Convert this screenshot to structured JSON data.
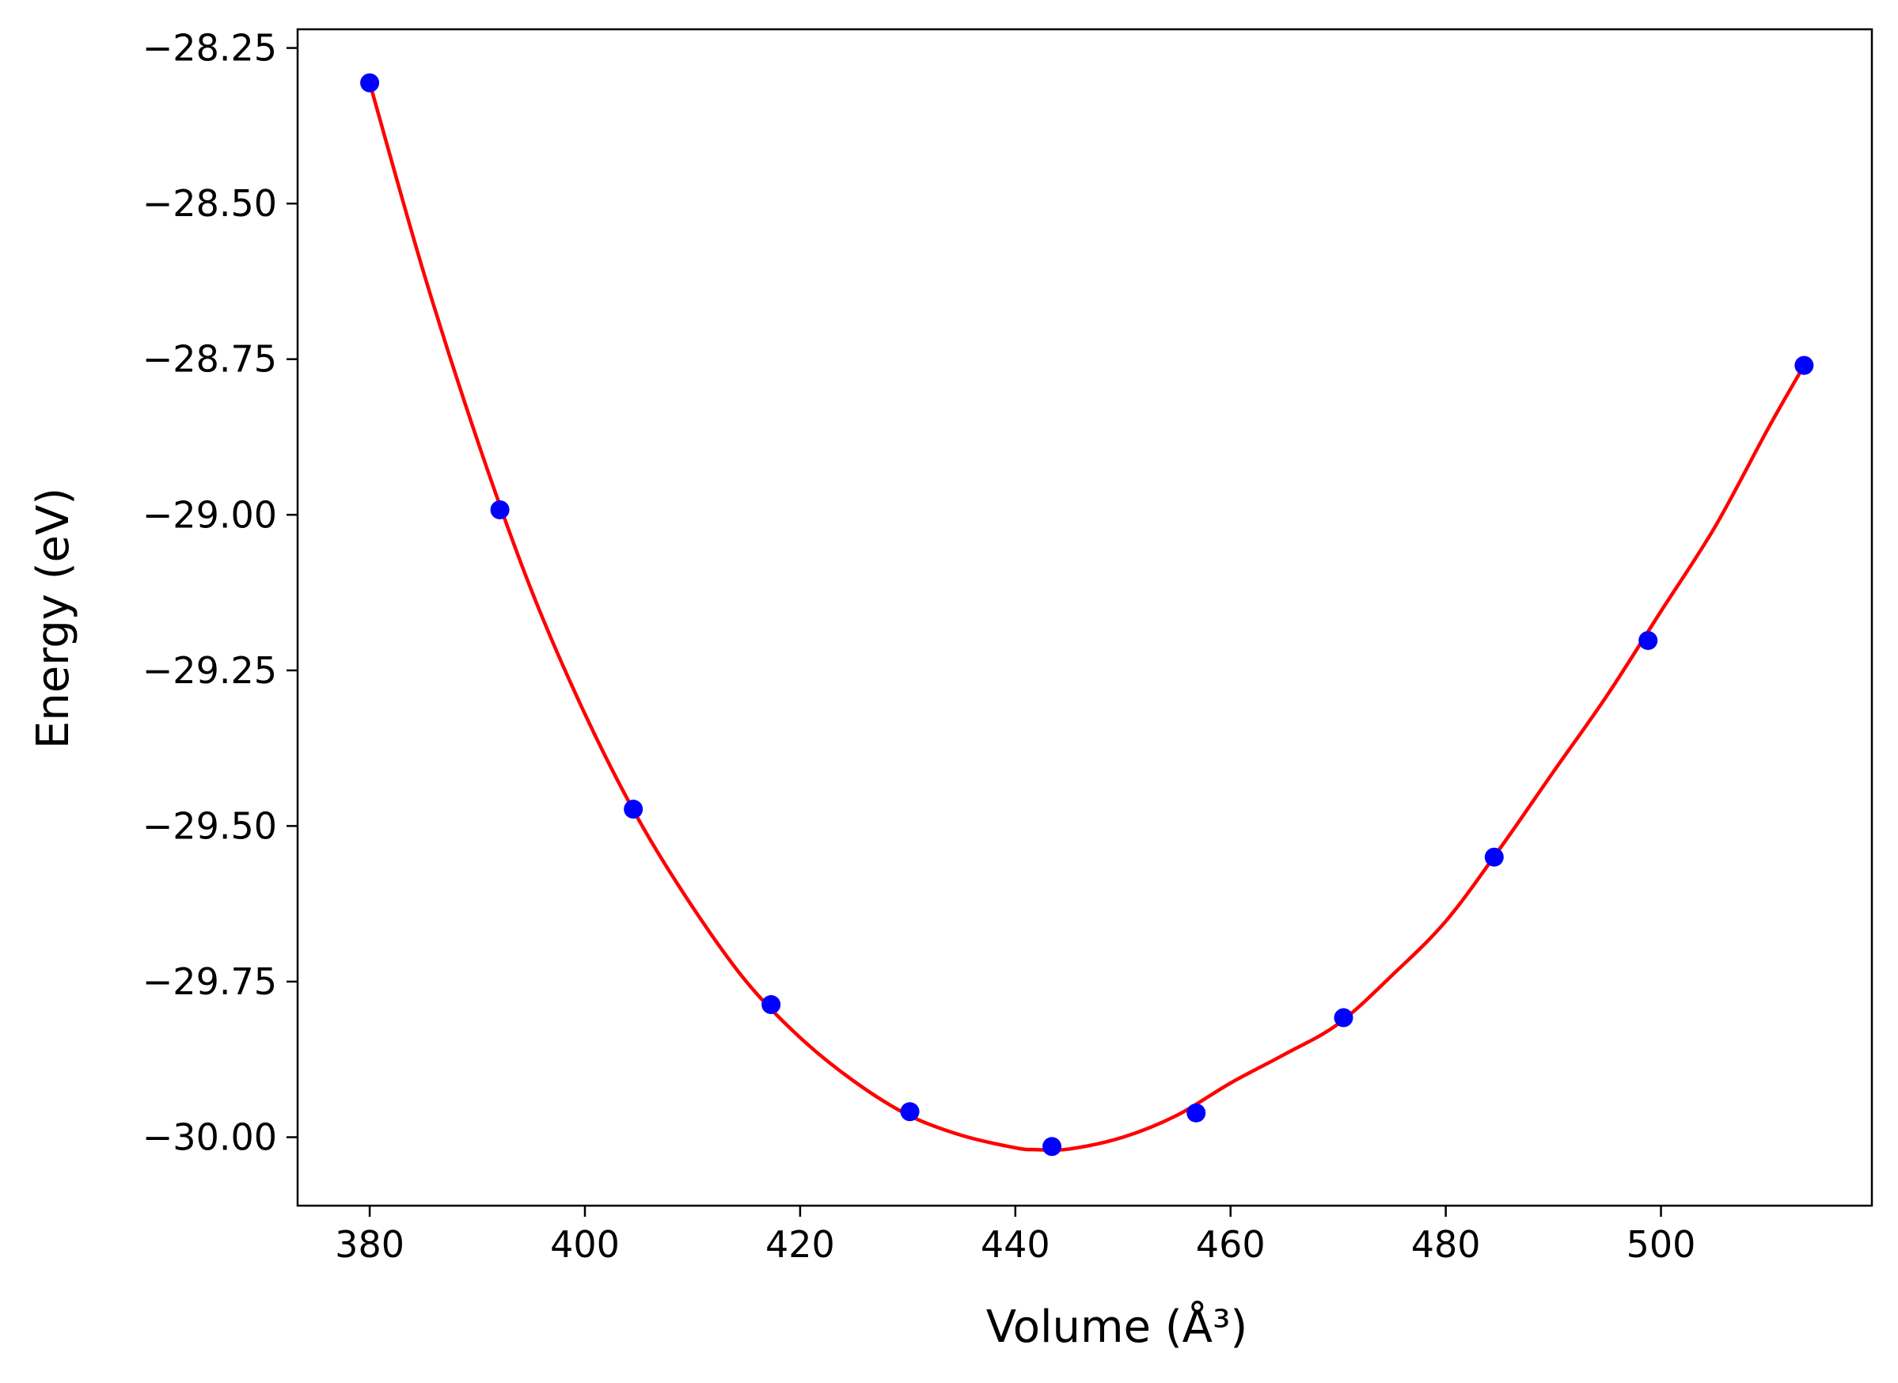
{
  "chart_data": {
    "type": "scatter",
    "xlabel": "Volume (Å³)",
    "ylabel": "Energy (eV)",
    "xlim": [
      373.3,
      519.6
    ],
    "ylim": [
      -30.11,
      -28.22
    ],
    "xticks": [
      380,
      400,
      420,
      440,
      460,
      480,
      500
    ],
    "yticks": [
      -28.25,
      -28.5,
      -28.75,
      -29.0,
      -29.25,
      -29.5,
      -29.75,
      -30.0
    ],
    "xtick_labels": [
      "380",
      "400",
      "420",
      "440",
      "460",
      "480",
      "500"
    ],
    "ytick_labels": [
      "−28.25",
      "−28.50",
      "−28.75",
      "−29.00",
      "−29.25",
      "−29.50",
      "−29.75",
      "−30.00"
    ],
    "grid": false,
    "series": [
      {
        "kind": "points",
        "color": "#0000ff",
        "x": [
          380.0,
          392.1,
          404.5,
          417.3,
          430.2,
          443.4,
          456.8,
          470.5,
          484.5,
          498.8,
          513.3
        ],
        "y": [
          -28.306,
          -28.992,
          -29.473,
          -29.787,
          -29.959,
          -30.015,
          -29.961,
          -29.808,
          -29.55,
          -29.202,
          -28.76
        ]
      },
      {
        "kind": "curve",
        "color": "#ff0000",
        "x": [
          380,
          385,
          390,
          395,
          400,
          405,
          410,
          415,
          420,
          425,
          430,
          435,
          440,
          442,
          445,
          450,
          455,
          460,
          465,
          470,
          475,
          480,
          485,
          490,
          495,
          500,
          505,
          510,
          513.3
        ],
        "y": [
          -28.306,
          -28.61,
          -28.88,
          -29.12,
          -29.32,
          -29.49,
          -29.63,
          -29.75,
          -29.84,
          -29.91,
          -29.964,
          -29.997,
          -30.017,
          -30.02,
          -30.019,
          -30.0,
          -29.965,
          -29.913,
          -29.867,
          -29.818,
          -29.74,
          -29.653,
          -29.537,
          -29.413,
          -29.29,
          -29.155,
          -29.02,
          -28.86,
          -28.76
        ]
      }
    ]
  }
}
